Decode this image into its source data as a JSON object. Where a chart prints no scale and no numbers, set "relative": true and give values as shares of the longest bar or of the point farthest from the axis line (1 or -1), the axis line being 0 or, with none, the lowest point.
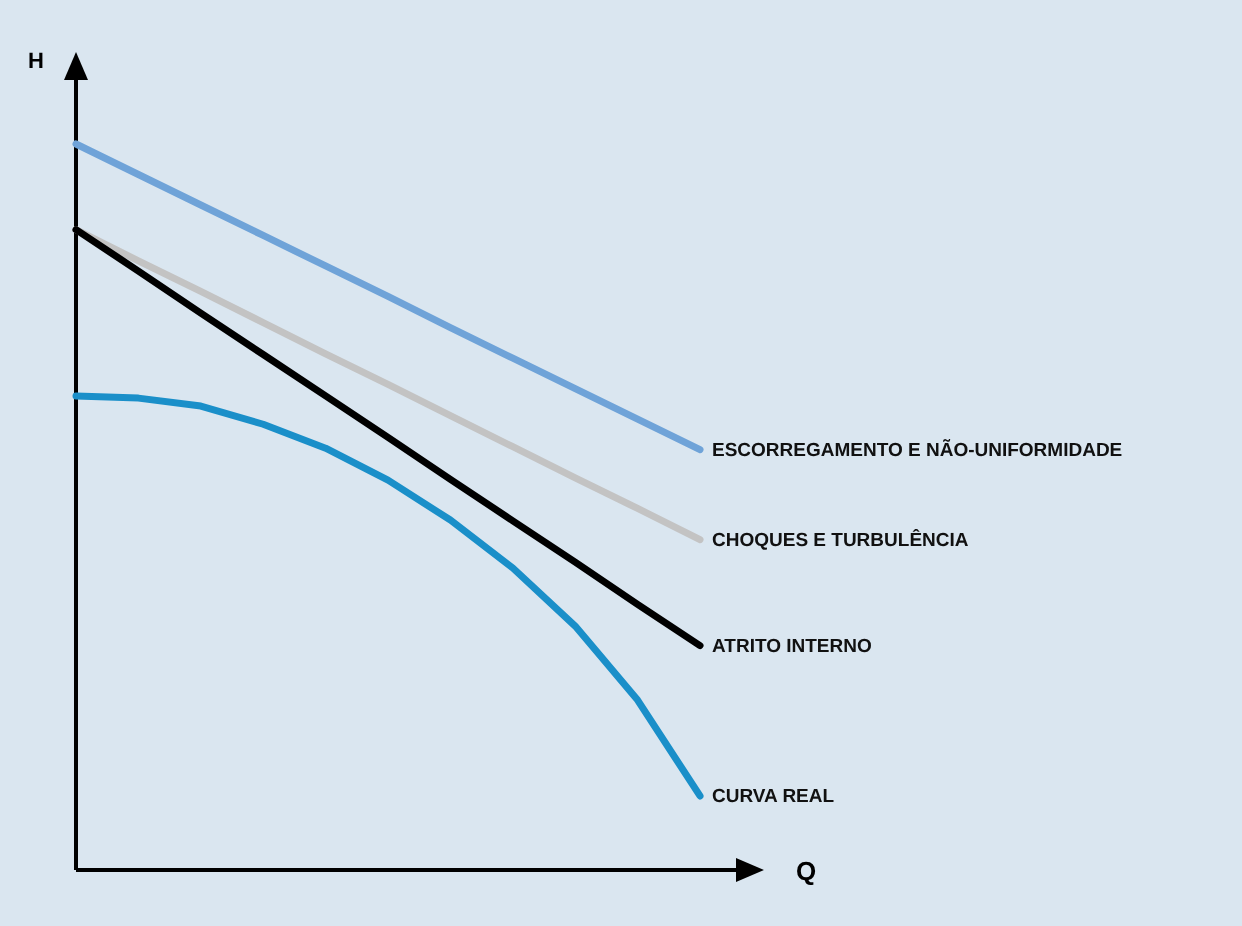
{
  "chart_data": {
    "type": "line",
    "relative": true,
    "xlabel": "Q",
    "ylabel": "H",
    "marker": "none",
    "line_style": "solid",
    "legend": false,
    "grid": false,
    "categories": [
      null,
      null,
      null,
      null,
      null,
      null,
      null,
      null,
      null,
      null,
      null
    ],
    "series": [
      {
        "name": "ESCORREGAMENTO E NÃO-UNIFORMIDADE",
        "color": "#6fa3d8",
        "values": [
          1,
          0.958,
          0.916,
          0.874,
          0.832,
          0.79,
          0.747,
          0.705,
          0.663,
          0.621,
          0.579
        ]
      },
      {
        "name": "CHOQUES E TURBULÊNCIA",
        "color": "#c3c3c3",
        "values": [
          0.882,
          0.839,
          0.797,
          0.754,
          0.711,
          0.669,
          0.626,
          0.583,
          0.54,
          0.498,
          0.455
        ]
      },
      {
        "name": "ATRITO INTERNO",
        "color": "#000000",
        "values": [
          0.882,
          0.825,
          0.767,
          0.71,
          0.653,
          0.596,
          0.538,
          0.481,
          0.424,
          0.366,
          0.309
        ]
      },
      {
        "name": "CURVA REAL",
        "color": "#1a8fc9",
        "values": [
          0.653,
          0.65,
          0.639,
          0.614,
          0.581,
          0.537,
          0.482,
          0.416,
          0.336,
          0.234,
          0.102
        ]
      }
    ]
  }
}
